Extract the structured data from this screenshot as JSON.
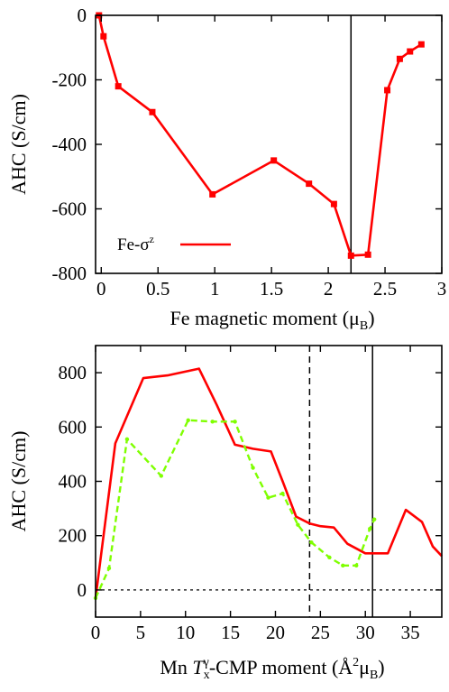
{
  "chart_data": [
    {
      "type": "line",
      "xlabel": "Fe magnetic moment (μ_B)",
      "xlabel_parts": {
        "main": "Fe magnetic moment (μ",
        "sub": "B",
        "close": ")"
      },
      "ylabel": "AHC (S/cm)",
      "xlim": [
        -0.05,
        3.0
      ],
      "ylim": [
        -800,
        0
      ],
      "xticks": [
        0,
        0.5,
        1,
        1.5,
        2,
        2.5,
        3
      ],
      "xtick_labels": [
        "0",
        "0.5",
        "1",
        "1.5",
        "2",
        "2.5",
        "3"
      ],
      "yticks": [
        0,
        -200,
        -400,
        -600,
        -800
      ],
      "ytick_labels": [
        "0",
        "-200",
        "-400",
        "-600",
        "-800"
      ],
      "vlines": [
        {
          "x": 2.2,
          "style": "solid"
        }
      ],
      "legend": {
        "position": "bottom-left",
        "label": "Fe-σ^z",
        "label_parts": {
          "main": "Fe-σ",
          "sup": "z"
        }
      },
      "series": [
        {
          "name": "Fe-σ^z",
          "color": "#ff0000",
          "marker": "square",
          "points": [
            [
              -0.02,
              0
            ],
            [
              0.02,
              -65
            ],
            [
              0.15,
              -220
            ],
            [
              0.45,
              -300
            ],
            [
              0.98,
              -555
            ],
            [
              1.52,
              -450
            ],
            [
              1.83,
              -522
            ],
            [
              2.05,
              -585
            ],
            [
              2.2,
              -745
            ],
            [
              2.35,
              -742
            ],
            [
              2.52,
              -232
            ],
            [
              2.63,
              -135
            ],
            [
              2.72,
              -112
            ],
            [
              2.82,
              -90
            ]
          ]
        }
      ]
    },
    {
      "type": "line",
      "xlabel": "Mn T_x^γ-CMP moment (Å^2μ_B)",
      "ylabel": "AHC (S/cm)",
      "xlim": [
        0,
        38.5
      ],
      "ylim": [
        -100,
        900
      ],
      "xticks": [
        0,
        5,
        10,
        15,
        20,
        25,
        30,
        35
      ],
      "xtick_labels": [
        "0",
        "5",
        "10",
        "15",
        "20",
        "25",
        "30",
        "35"
      ],
      "yticks": [
        0,
        200,
        400,
        600,
        800
      ],
      "ytick_labels": [
        "0",
        "200",
        "400",
        "600",
        "800"
      ],
      "hlines": [
        {
          "y": 0,
          "style": "dotted"
        }
      ],
      "vlines": [
        {
          "x": 23.8,
          "style": "dashed"
        },
        {
          "x": 30.8,
          "style": "solid"
        }
      ],
      "series": [
        {
          "color": "#ff0000",
          "style": "solid",
          "points": [
            [
              0,
              -30
            ],
            [
              2.2,
              540
            ],
            [
              5.3,
              780
            ],
            [
              8,
              790
            ],
            [
              11.5,
              815
            ],
            [
              13.5,
              680
            ],
            [
              15.5,
              535
            ],
            [
              17.5,
              520
            ],
            [
              19.5,
              510
            ],
            [
              20.8,
              400
            ],
            [
              22.3,
              270
            ],
            [
              23.8,
              245
            ],
            [
              25,
              235
            ],
            [
              26.5,
              230
            ],
            [
              28,
              170
            ],
            [
              30,
              135
            ],
            [
              32.5,
              135
            ],
            [
              34.5,
              295
            ],
            [
              36.3,
              250
            ],
            [
              37.5,
              160
            ],
            [
              38.5,
              125
            ]
          ]
        },
        {
          "color": "#7fff00",
          "style": "dashed",
          "points": [
            [
              0,
              -30
            ],
            [
              1.5,
              80
            ],
            [
              3.5,
              555
            ],
            [
              7.3,
              420
            ],
            [
              10.3,
              625
            ],
            [
              13,
              620
            ],
            [
              15.5,
              620
            ],
            [
              17.5,
              450
            ],
            [
              19.2,
              340
            ],
            [
              20.8,
              355
            ],
            [
              22.5,
              240
            ],
            [
              24,
              175
            ],
            [
              26,
              120
            ],
            [
              27.5,
              90
            ],
            [
              29,
              90
            ],
            [
              30.5,
              225
            ],
            [
              31,
              260
            ]
          ]
        }
      ]
    }
  ]
}
